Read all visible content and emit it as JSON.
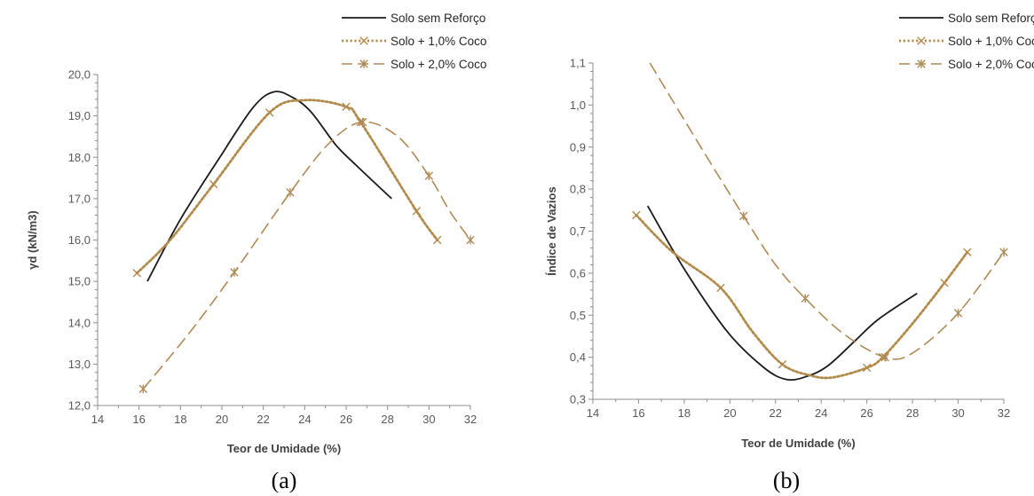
{
  "colors": {
    "solo": "#1a1a1a",
    "coco1": "#b28a4a",
    "coco2": "#b08a55",
    "axis": "#8c8c8c"
  },
  "legend": [
    "Solo sem Reforço",
    "Solo + 1,0% Coco",
    "Solo + 2,0% Coco"
  ],
  "chart_data": [
    {
      "type": "line",
      "caption": "(a)",
      "xlabel": "Teor de Umidade (%)",
      "ylabel": "γd (kN/m3)",
      "xlim": [
        14,
        32
      ],
      "ylim": [
        12,
        20
      ],
      "xticks": [
        14,
        16,
        18,
        20,
        22,
        24,
        26,
        28,
        30,
        32
      ],
      "xtick_labels": [
        "14",
        "16",
        "18",
        "20",
        "22",
        "24",
        "26",
        "28",
        "30",
        "32"
      ],
      "yticks": [
        12,
        13,
        14,
        15,
        16,
        17,
        18,
        19,
        20
      ],
      "ytick_labels": [
        "12,0",
        "13,0",
        "14,0",
        "15,0",
        "16,0",
        "17,0",
        "18,0",
        "19,0",
        "20,0"
      ],
      "series": [
        {
          "name": "Solo sem Reforço",
          "style": "solid",
          "marker": "none",
          "x": [
            16.4,
            18.0,
            19.9,
            21.5,
            22.5,
            23.4,
            24.3,
            25.5,
            26.5,
            28.2
          ],
          "y": [
            15.0,
            16.5,
            18.0,
            19.2,
            19.58,
            19.45,
            19.1,
            18.3,
            17.8,
            17.0
          ]
        },
        {
          "name": "Solo + 1,0% Coco",
          "style": "dotted",
          "marker": "x",
          "x": [
            15.9,
            17.5,
            19.6,
            22.3,
            24.0,
            26.0,
            26.7,
            29.4,
            30.4
          ],
          "y": [
            15.2,
            16.0,
            17.35,
            19.08,
            19.38,
            19.22,
            18.85,
            16.7,
            16.0
          ],
          "marker_x": [
            15.9,
            19.6,
            22.3,
            26.0,
            26.7,
            29.4,
            30.4
          ],
          "marker_y": [
            15.2,
            17.35,
            19.08,
            19.22,
            18.85,
            16.7,
            16.0
          ]
        },
        {
          "name": "Solo + 2,0% Coco",
          "style": "dashed",
          "marker": "asterisk",
          "x": [
            16.2,
            18.5,
            20.6,
            23.3,
            25.2,
            26.8,
            28.5,
            30.0,
            31.0,
            32.0
          ],
          "y": [
            12.4,
            13.8,
            15.22,
            17.15,
            18.35,
            18.85,
            18.5,
            17.55,
            16.7,
            16.0
          ],
          "marker_x": [
            16.2,
            20.6,
            23.3,
            26.8,
            30.0,
            32.0
          ],
          "marker_y": [
            12.4,
            15.22,
            17.15,
            18.85,
            17.55,
            16.0
          ]
        }
      ]
    },
    {
      "type": "line",
      "caption": "(b)",
      "xlabel": "Teor de Umidade (%)",
      "ylabel": "Índice de Vazios",
      "xlim": [
        14,
        32
      ],
      "ylim": [
        0.3,
        1.1
      ],
      "xticks": [
        14,
        16,
        18,
        20,
        22,
        24,
        26,
        28,
        30,
        32
      ],
      "xtick_labels": [
        "14",
        "16",
        "18",
        "20",
        "22",
        "24",
        "26",
        "28",
        "30",
        "32"
      ],
      "yticks": [
        0.3,
        0.4,
        0.5,
        0.6,
        0.7,
        0.8,
        0.9,
        1.0,
        1.1
      ],
      "ytick_labels": [
        "0,3",
        "0,4",
        "0,5",
        "0,6",
        "0,7",
        "0,8",
        "0,9",
        "1,0",
        "1,1"
      ],
      "series": [
        {
          "name": "Solo sem Reforço",
          "style": "solid",
          "marker": "none",
          "x": [
            16.4,
            18.0,
            19.9,
            21.5,
            22.5,
            23.4,
            24.3,
            25.5,
            26.5,
            28.2
          ],
          "y": [
            0.76,
            0.61,
            0.46,
            0.375,
            0.347,
            0.355,
            0.38,
            0.44,
            0.49,
            0.552
          ]
        },
        {
          "name": "Solo + 1,0% Coco",
          "style": "dotted",
          "marker": "x",
          "x": [
            15.9,
            17.5,
            19.6,
            21.0,
            22.3,
            23.5,
            24.5,
            26.0,
            26.7,
            28.0,
            29.4,
            30.4
          ],
          "y": [
            0.738,
            0.65,
            0.565,
            0.46,
            0.383,
            0.357,
            0.352,
            0.375,
            0.4,
            0.48,
            0.577,
            0.65
          ],
          "marker_x": [
            15.9,
            19.6,
            22.3,
            26.0,
            26.7,
            29.4,
            30.4
          ],
          "marker_y": [
            0.738,
            0.565,
            0.383,
            0.375,
            0.4,
            0.577,
            0.65
          ]
        },
        {
          "name": "Solo + 2,0% Coco",
          "style": "dashed",
          "marker": "asterisk",
          "x": [
            16.5,
            18.5,
            20.6,
            22.0,
            23.3,
            25.0,
            26.8,
            28.0,
            30.0,
            32.0
          ],
          "y": [
            1.1,
            0.92,
            0.736,
            0.62,
            0.54,
            0.455,
            0.4,
            0.41,
            0.505,
            0.65
          ],
          "marker_x": [
            20.6,
            23.3,
            26.8,
            30.0,
            32.0
          ],
          "marker_y": [
            0.736,
            0.54,
            0.4,
            0.505,
            0.65
          ]
        }
      ]
    }
  ]
}
